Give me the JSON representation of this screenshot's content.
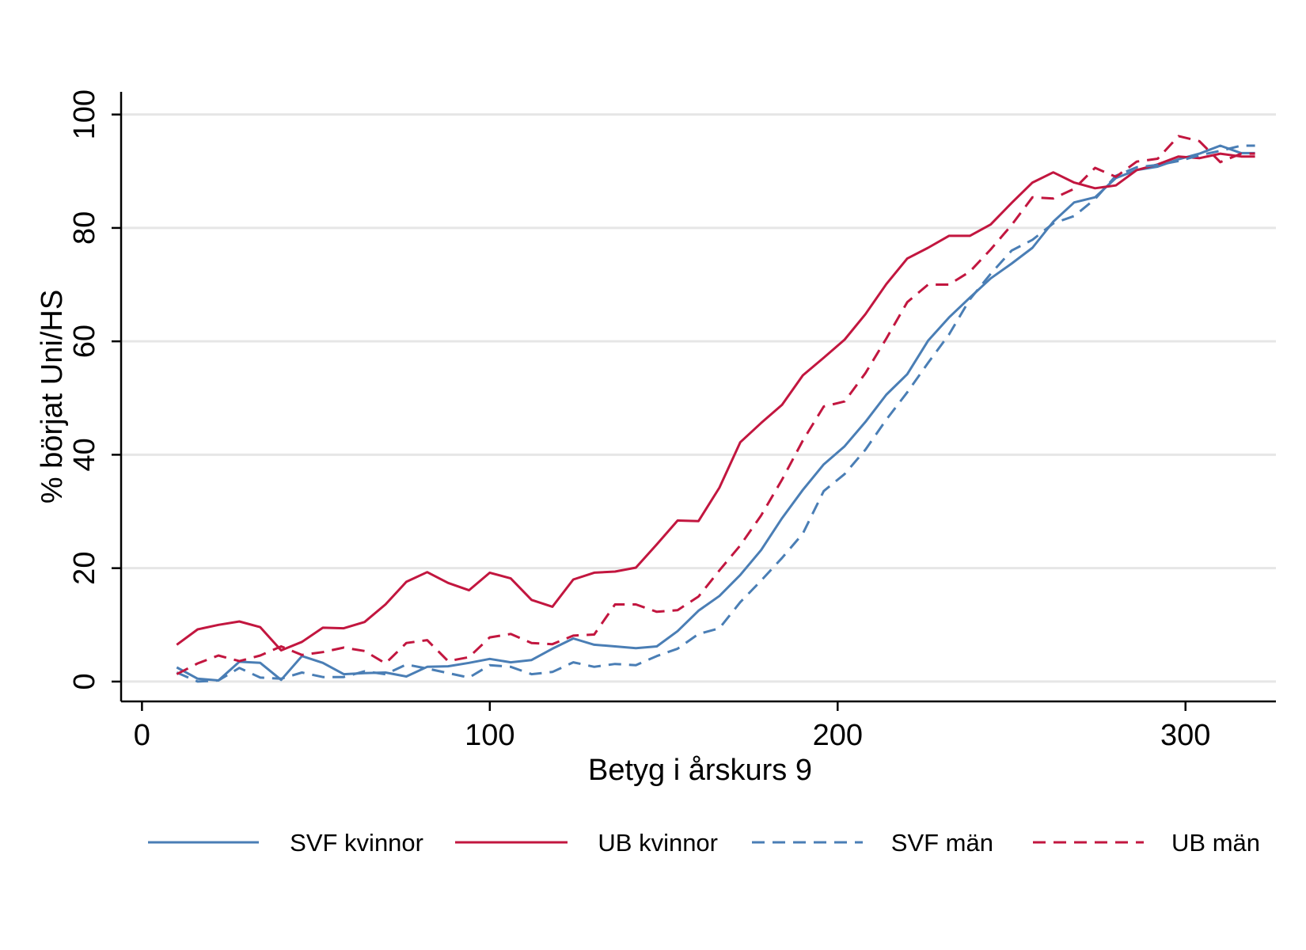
{
  "chart_data": {
    "type": "line",
    "xlabel": "Betyg i årskurs 9",
    "ylabel": "% börjat Uni/HS",
    "xlim": [
      -6,
      326
    ],
    "ylim": [
      -3.5,
      104
    ],
    "xticks": [
      0,
      100,
      200,
      300
    ],
    "yticks": [
      0,
      20,
      40,
      60,
      80,
      100
    ],
    "xtick_labels": [
      "0",
      "100",
      "200",
      "300"
    ],
    "ytick_labels": [
      "0",
      "20",
      "40",
      "60",
      "80",
      "100"
    ],
    "grid": "horizontal",
    "legend_position": "bottom",
    "x": [
      10,
      16,
      22,
      28,
      34,
      40,
      46,
      52,
      58,
      64,
      70,
      76,
      82,
      88,
      94,
      100,
      106,
      112,
      118,
      124,
      130,
      136,
      142,
      148,
      154,
      160,
      166,
      172,
      178,
      184,
      190,
      196,
      202,
      208,
      214,
      220,
      226,
      232,
      238,
      244,
      250,
      256,
      262,
      268,
      274,
      280,
      286,
      292,
      298,
      304,
      310,
      316,
      320
    ],
    "series": [
      {
        "name": "SVF kvinnor",
        "color": "#4a7eb5",
        "dash": "solid",
        "values": [
          2.5,
          0.5,
          0.2,
          3.5,
          3.3,
          0.3,
          4.5,
          3.3,
          1.3,
          1.5,
          1.6,
          0.9,
          2.6,
          2.7,
          3.3,
          4.0,
          3.4,
          3.8,
          5.8,
          7.6,
          6.5,
          6.2,
          5.9,
          6.2,
          8.9,
          12.5,
          15.1,
          18.8,
          23.2,
          28.8,
          33.8,
          38.3,
          41.5,
          45.8,
          50.6,
          54.2,
          60.1,
          64.2,
          67.7,
          71.1,
          73.7,
          76.5,
          81.1,
          84.5,
          85.4,
          88.8,
          90.2,
          90.8,
          92.1,
          93.1,
          94.5,
          93.2,
          93.2
        ]
      },
      {
        "name": "UB kvinnor",
        "color": "#c2163f",
        "dash": "solid",
        "values": [
          6.5,
          9.2,
          10.0,
          10.6,
          9.6,
          5.5,
          7.0,
          9.5,
          9.4,
          10.5,
          13.6,
          17.6,
          19.3,
          17.4,
          16.1,
          19.2,
          18.2,
          14.4,
          13.2,
          18.0,
          19.2,
          19.4,
          20.1,
          24.2,
          28.4,
          28.3,
          34.2,
          42.2,
          45.6,
          48.8,
          54.0,
          57.1,
          60.3,
          64.8,
          70.1,
          74.6,
          76.5,
          78.6,
          78.6,
          80.6,
          84.4,
          88.0,
          89.8,
          88.0,
          87.0,
          87.5,
          90.2,
          91.2,
          92.6,
          92.3,
          93.1,
          92.6,
          92.6
        ]
      },
      {
        "name": "SVF män",
        "color": "#4a7eb5",
        "dash": "dashed",
        "values": [
          1.6,
          0.0,
          0.2,
          2.4,
          0.7,
          0.5,
          1.6,
          0.8,
          0.8,
          1.8,
          1.3,
          3.0,
          2.3,
          1.5,
          0.7,
          2.9,
          2.6,
          1.3,
          1.7,
          3.4,
          2.6,
          3.1,
          2.9,
          4.5,
          5.8,
          8.4,
          9.4,
          14.0,
          17.8,
          21.8,
          26.1,
          33.6,
          36.6,
          40.9,
          46.2,
          51.0,
          56.2,
          61.2,
          67.4,
          71.9,
          76.0,
          77.9,
          80.8,
          82.1,
          85.1,
          89.2,
          90.7,
          91.1,
          91.8,
          92.8,
          93.6,
          94.5,
          94.5
        ]
      },
      {
        "name": "UB män",
        "color": "#c2163f",
        "dash": "dashed",
        "values": [
          1.3,
          3.2,
          4.6,
          3.6,
          4.6,
          6.2,
          4.7,
          5.2,
          6.0,
          5.4,
          3.2,
          6.8,
          7.3,
          3.6,
          4.3,
          7.8,
          8.4,
          6.8,
          6.6,
          8.1,
          8.3,
          13.6,
          13.6,
          12.3,
          12.6,
          15.0,
          19.6,
          24.0,
          29.3,
          35.6,
          42.5,
          48.5,
          49.4,
          54.4,
          60.5,
          66.9,
          70.0,
          70.0,
          72.3,
          76.2,
          80.5,
          85.4,
          85.2,
          86.9,
          90.6,
          89.0,
          91.7,
          92.2,
          96.2,
          95.3,
          91.6,
          93.1,
          93.1
        ]
      }
    ]
  }
}
